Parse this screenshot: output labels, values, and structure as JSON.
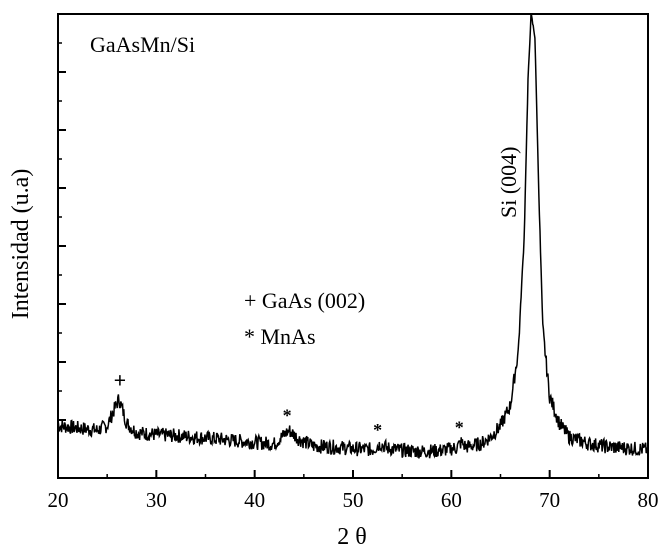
{
  "chart_data": {
    "type": "line",
    "title": "",
    "xlabel": "2 θ",
    "ylabel": "Intensidad (u.a)",
    "xlim": [
      20,
      80
    ],
    "x_ticks": [
      20,
      30,
      40,
      50,
      60,
      70,
      80
    ],
    "x_tick_labels": [
      "20",
      "30",
      "40",
      "50",
      "60",
      "70",
      "80"
    ],
    "y_tick_labels_shown": false,
    "grid": false,
    "series": [
      {
        "name": "GaAsMn/Si",
        "points": [
          [
            20,
            0.085
          ],
          [
            22,
            0.08
          ],
          [
            24,
            0.075
          ],
          [
            25,
            0.085
          ],
          [
            25.5,
            0.11
          ],
          [
            26.2,
            0.145
          ],
          [
            27,
            0.09
          ],
          [
            28,
            0.07
          ],
          [
            30,
            0.065
          ],
          [
            32,
            0.063
          ],
          [
            35,
            0.058
          ],
          [
            38,
            0.052
          ],
          [
            40,
            0.048
          ],
          [
            42,
            0.045
          ],
          [
            43,
            0.065
          ],
          [
            43.5,
            0.075
          ],
          [
            44.5,
            0.055
          ],
          [
            46,
            0.04
          ],
          [
            48,
            0.038
          ],
          [
            50,
            0.034
          ],
          [
            52,
            0.032
          ],
          [
            52.8,
            0.045
          ],
          [
            53.5,
            0.035
          ],
          [
            55,
            0.03
          ],
          [
            57,
            0.028
          ],
          [
            59,
            0.03
          ],
          [
            60.5,
            0.036
          ],
          [
            61,
            0.048
          ],
          [
            61.5,
            0.038
          ],
          [
            63,
            0.045
          ],
          [
            64,
            0.06
          ],
          [
            65,
            0.085
          ],
          [
            66,
            0.13
          ],
          [
            66.8,
            0.25
          ],
          [
            67.4,
            0.5
          ],
          [
            67.8,
            0.85
          ],
          [
            68.1,
            1.0
          ],
          [
            68.5,
            0.95
          ],
          [
            68.9,
            0.6
          ],
          [
            69.3,
            0.3
          ],
          [
            70,
            0.15
          ],
          [
            71,
            0.09
          ],
          [
            72,
            0.06
          ],
          [
            74,
            0.045
          ],
          [
            76,
            0.038
          ],
          [
            78,
            0.035
          ],
          [
            80,
            0.032
          ]
        ]
      }
    ],
    "annotations": {
      "sample_label": "GaAsMn/Si",
      "peak_si": "Si (004)",
      "plus_marker": "+",
      "star_marker": "*",
      "legend_gaas": "+ GaAs (002)",
      "legend_mnas": "* MnAs"
    },
    "markers": [
      {
        "symbol": "+",
        "x": 26.3,
        "y": 0.17
      },
      {
        "symbol": "*",
        "x": 43.3,
        "y": 0.095
      },
      {
        "symbol": "*",
        "x": 52.5,
        "y": 0.062
      },
      {
        "symbol": "*",
        "x": 60.8,
        "y": 0.068
      }
    ]
  }
}
